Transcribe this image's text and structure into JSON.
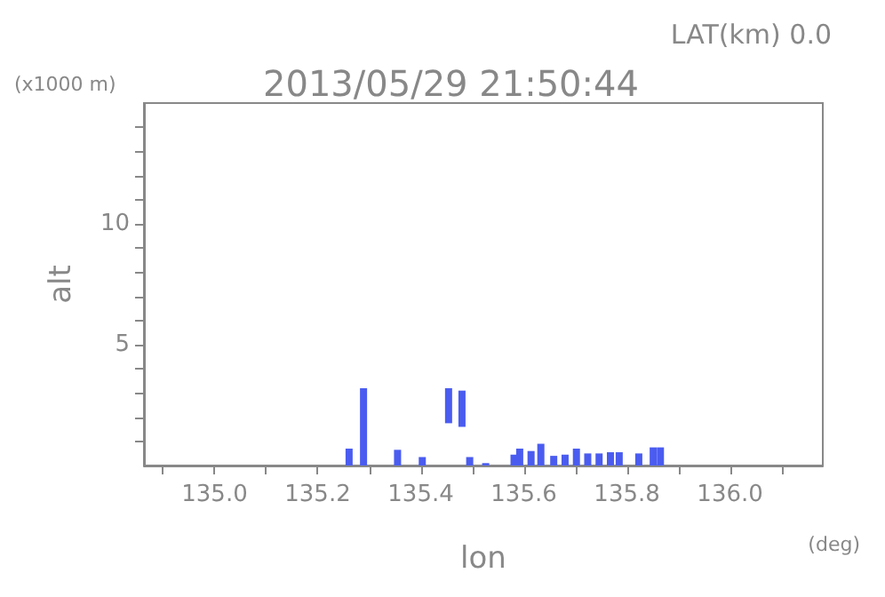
{
  "chart_data": {
    "type": "bar",
    "title": "2013/05/29 21:50:44",
    "subtitle": "LAT(km) 0.0",
    "xlabel": "lon",
    "ylabel": "alt",
    "annotations": [
      "(x1000 m)",
      "(deg)"
    ],
    "x": [
      135.261,
      135.289,
      135.355,
      135.403,
      135.454,
      135.48,
      135.495,
      135.526,
      135.581,
      135.592,
      135.614,
      135.633,
      135.658,
      135.68,
      135.702,
      135.724,
      135.746,
      135.768,
      135.785,
      135.823,
      135.851,
      135.865
    ],
    "base": [
      0,
      0,
      0,
      0,
      1.75,
      1.6,
      0,
      0,
      0,
      0,
      0,
      0,
      0,
      0,
      0,
      0,
      0,
      0,
      0,
      0,
      0,
      0
    ],
    "values": [
      0.7,
      3.2,
      0.65,
      0.35,
      1.45,
      1.5,
      0.35,
      0.1,
      0.45,
      0.7,
      0.6,
      0.9,
      0.4,
      0.45,
      0.7,
      0.5,
      0.5,
      0.55,
      0.55,
      0.5,
      0.75,
      0.75
    ],
    "color": "#4a5cf0",
    "xlim": [
      134.863,
      136.18
    ],
    "xticks": [
      {
        "value": 134.9,
        "label": null
      },
      {
        "value": 135,
        "label": "135.0"
      },
      {
        "value": 135.1,
        "label": null
      },
      {
        "value": 135.2,
        "label": "135.2"
      },
      {
        "value": 135.3,
        "label": null
      },
      {
        "value": 135.4,
        "label": "135.4"
      },
      {
        "value": 135.5,
        "label": null
      },
      {
        "value": 135.6,
        "label": "135.6"
      },
      {
        "value": 135.7,
        "label": null
      },
      {
        "value": 135.8,
        "label": "135.8"
      },
      {
        "value": 135.9,
        "label": null
      },
      {
        "value": 136,
        "label": "136.0"
      },
      {
        "value": 136.1,
        "label": null
      }
    ],
    "ylim": [
      0,
      15
    ],
    "yticks": [
      {
        "value": 1,
        "label": null
      },
      {
        "value": 2,
        "label": null
      },
      {
        "value": 3,
        "label": null
      },
      {
        "value": 4,
        "label": null
      },
      5,
      {
        "value": 6,
        "label": null
      },
      {
        "value": 7,
        "label": null
      },
      {
        "value": 8,
        "label": null
      },
      {
        "value": 9,
        "label": null
      },
      10,
      {
        "value": 11,
        "label": null
      },
      {
        "value": 12,
        "label": null
      },
      {
        "value": 13,
        "label": null
      },
      {
        "value": 14,
        "label": null
      }
    ],
    "grid": false
  }
}
